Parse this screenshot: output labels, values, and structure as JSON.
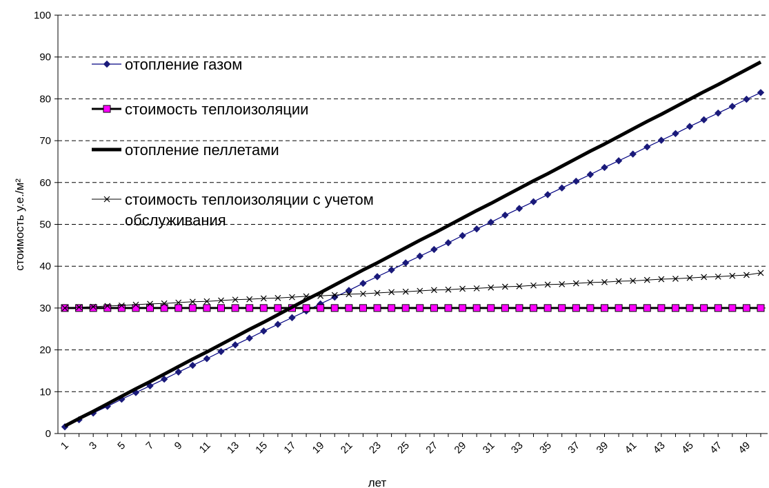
{
  "chart_data": {
    "type": "line",
    "xlabel": "лет",
    "ylabel": "стоимость у.е./м²",
    "x": [
      1,
      2,
      3,
      4,
      5,
      6,
      7,
      8,
      9,
      10,
      11,
      12,
      13,
      14,
      15,
      16,
      17,
      18,
      19,
      20,
      21,
      22,
      23,
      24,
      25,
      26,
      27,
      28,
      29,
      30,
      31,
      32,
      33,
      34,
      35,
      36,
      37,
      38,
      39,
      40,
      41,
      42,
      43,
      44,
      45,
      46,
      47,
      48,
      49,
      50
    ],
    "x_tick_labels": [
      "1",
      "3",
      "5",
      "7",
      "9",
      "11",
      "13",
      "15",
      "17",
      "19",
      "21",
      "23",
      "25",
      "27",
      "29",
      "31",
      "33",
      "35",
      "37",
      "39",
      "41",
      "43",
      "45",
      "47",
      "49"
    ],
    "ylim": [
      0,
      100
    ],
    "y_ticks": [
      0,
      10,
      20,
      30,
      40,
      50,
      60,
      70,
      80,
      90,
      100
    ],
    "grid": "horizontal dashed",
    "legend_position": "top-left",
    "series": [
      {
        "name": "отопление газом",
        "color": "#1a1a7a",
        "marker": "diamond",
        "values": [
          1.6,
          3.3,
          4.9,
          6.5,
          8.2,
          9.8,
          11.4,
          13.0,
          14.7,
          16.3,
          17.9,
          19.6,
          21.2,
          22.8,
          24.5,
          26.1,
          27.7,
          29.3,
          31.0,
          32.6,
          34.2,
          35.9,
          37.5,
          39.1,
          40.8,
          42.4,
          44.0,
          45.6,
          47.3,
          48.9,
          50.5,
          52.2,
          53.8,
          55.4,
          57.1,
          58.7,
          60.3,
          61.9,
          63.6,
          65.2,
          66.8,
          68.5,
          70.1,
          71.7,
          73.4,
          75.0,
          76.6,
          78.2,
          79.9,
          81.5
        ]
      },
      {
        "name": "стоимость теплоизоляции",
        "color": "#ff00ff",
        "marker": "square",
        "values": [
          30,
          30,
          30,
          30,
          30,
          30,
          30,
          30,
          30,
          30,
          30,
          30,
          30,
          30,
          30,
          30,
          30,
          30,
          30,
          30,
          30,
          30,
          30,
          30,
          30,
          30,
          30,
          30,
          30,
          30,
          30,
          30,
          30,
          30,
          30,
          30,
          30,
          30,
          30,
          30,
          30,
          30,
          30,
          30,
          30,
          30,
          30,
          30,
          30,
          30
        ]
      },
      {
        "name": "отопление пеллетами",
        "color": "#000000",
        "marker": "none",
        "values": [
          1.8,
          3.6,
          5.3,
          7.1,
          8.9,
          10.7,
          12.4,
          14.2,
          16.0,
          17.8,
          19.5,
          21.3,
          23.1,
          24.9,
          26.6,
          28.4,
          30.2,
          32.0,
          33.7,
          35.5,
          37.3,
          39.1,
          40.8,
          42.6,
          44.4,
          46.2,
          47.9,
          49.7,
          51.5,
          53.3,
          55.0,
          56.8,
          58.6,
          60.4,
          62.1,
          63.9,
          65.7,
          67.5,
          69.2,
          71.0,
          72.8,
          74.6,
          76.3,
          78.1,
          79.9,
          81.7,
          83.4,
          85.2,
          87.0,
          88.8
        ]
      },
      {
        "name": "стоимость теплоизоляции с учетом обслуживания",
        "legend_lines": [
          "стоимость теплоизоляции с учетом",
          "обслуживания"
        ],
        "color": "#000000",
        "marker": "x",
        "values": [
          30.0,
          30.2,
          30.3,
          30.5,
          30.6,
          30.8,
          31.0,
          31.1,
          31.3,
          31.5,
          31.6,
          31.8,
          32.0,
          32.1,
          32.3,
          32.4,
          32.6,
          32.8,
          32.9,
          33.1,
          33.3,
          33.4,
          33.6,
          33.8,
          33.9,
          34.1,
          34.3,
          34.4,
          34.6,
          34.7,
          34.9,
          35.1,
          35.2,
          35.4,
          35.6,
          35.7,
          35.9,
          36.1,
          36.2,
          36.4,
          36.5,
          36.7,
          36.9,
          37.0,
          37.2,
          37.4,
          37.5,
          37.7,
          37.9,
          38.4
        ]
      }
    ]
  }
}
